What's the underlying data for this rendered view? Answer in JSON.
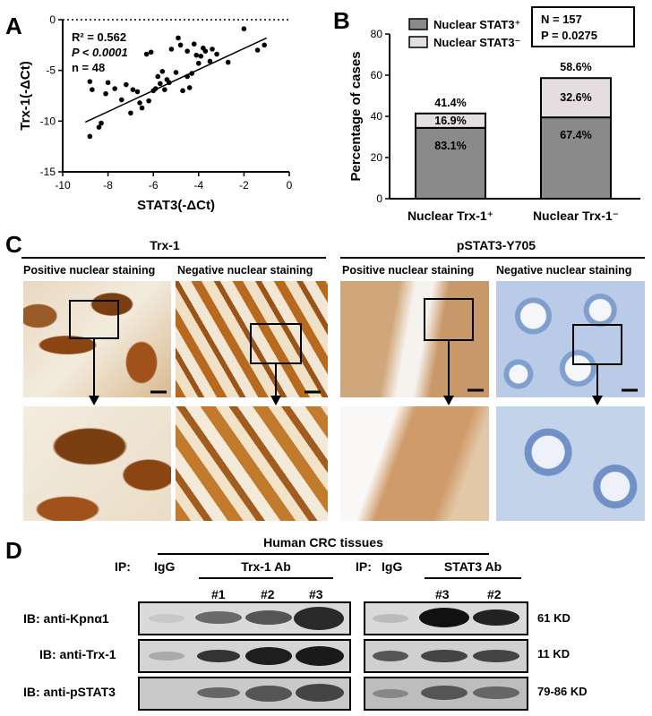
{
  "panels": {
    "a": "A",
    "b": "B",
    "c": "C",
    "d": "D"
  },
  "chart_data": [
    {
      "type": "scatter",
      "xlabel": "STAT3(-ΔCt)",
      "ylabel": "Trx-1(-ΔCt)",
      "xlim": [
        -10,
        0
      ],
      "ylim": [
        -15,
        0
      ],
      "xticks": [
        "-10",
        "-8",
        "-6",
        "-4",
        "-2",
        "0"
      ],
      "yticks": [
        "0",
        "-5",
        "-10",
        "-15"
      ],
      "annotation": {
        "r2_label": "R² = 0.562",
        "p_label": "P < 0.0001",
        "n_label": "n = 48"
      },
      "fit_line": {
        "x": [
          -9,
          -1
        ],
        "y": [
          -10.1,
          -1.8
        ]
      },
      "points": [
        [
          -8.8,
          -6.1
        ],
        [
          -8.7,
          -6.9
        ],
        [
          -8.8,
          -11.5
        ],
        [
          -8.4,
          -10.6
        ],
        [
          -8.3,
          -10.2
        ],
        [
          -8.1,
          -7.3
        ],
        [
          -8.0,
          -6.2
        ],
        [
          -7.7,
          -6.8
        ],
        [
          -7.4,
          -7.9
        ],
        [
          -7.2,
          -6.4
        ],
        [
          -7.0,
          -9.2
        ],
        [
          -6.9,
          -6.9
        ],
        [
          -6.7,
          -7.1
        ],
        [
          -6.6,
          -8.2
        ],
        [
          -6.5,
          -8.7
        ],
        [
          -6.3,
          -3.4
        ],
        [
          -6.2,
          -8.0
        ],
        [
          -6.1,
          -3.2
        ],
        [
          -6.0,
          -7.0
        ],
        [
          -5.9,
          -6.8
        ],
        [
          -5.8,
          -5.6
        ],
        [
          -5.7,
          -6.3
        ],
        [
          -5.6,
          -5.1
        ],
        [
          -5.5,
          -6.9
        ],
        [
          -5.4,
          -5.9
        ],
        [
          -5.3,
          -6.2
        ],
        [
          -5.2,
          -2.9
        ],
        [
          -5.0,
          -5.2
        ],
        [
          -4.9,
          -1.8
        ],
        [
          -4.8,
          -2.5
        ],
        [
          -4.7,
          -7.0
        ],
        [
          -4.5,
          -3.1
        ],
        [
          -4.5,
          -5.6
        ],
        [
          -4.4,
          -6.7
        ],
        [
          -4.3,
          -5.3
        ],
        [
          -4.2,
          -2.4
        ],
        [
          -4.1,
          -3.5
        ],
        [
          -4.0,
          -4.3
        ],
        [
          -3.9,
          -3.6
        ],
        [
          -3.8,
          -2.8
        ],
        [
          -3.7,
          -3.1
        ],
        [
          -3.5,
          -4.1
        ],
        [
          -3.4,
          -2.9
        ],
        [
          -3.2,
          -3.4
        ],
        [
          -2.7,
          -4.2
        ],
        [
          -2.0,
          -0.9
        ],
        [
          -1.4,
          -3.0
        ],
        [
          -1.1,
          -2.5
        ]
      ]
    },
    {
      "type": "bar",
      "ylabel": "Percentage of cases",
      "ylim": [
        0,
        80
      ],
      "yticks": [
        "0",
        "20",
        "40",
        "60",
        "80"
      ],
      "categories": [
        "Nuclear Trx-1⁺",
        "Nuclear Trx-1⁻"
      ],
      "totals": [
        41.4,
        58.6
      ],
      "total_labels": [
        "41.4%",
        "58.6%"
      ],
      "series": [
        {
          "name": "Nuclear STAT3⁺",
          "color": "#8a8a8a",
          "values": [
            34.4,
            39.5
          ],
          "labels": [
            "83.1%",
            "67.4%"
          ]
        },
        {
          "name": "Nuclear STAT3⁻",
          "color": "#e4dee0",
          "values": [
            7.0,
            19.1
          ],
          "labels": [
            "16.9%",
            "32.6%"
          ]
        }
      ],
      "stats": {
        "n_label": "N = 157",
        "p_label": "P = 0.0275"
      }
    }
  ],
  "histology": {
    "groups": [
      "Trx-1",
      "pSTAT3-Y705"
    ],
    "subheads": [
      "Positive nuclear staining",
      "Negative nuclear staining",
      "Positive nuclear staining",
      "Negative nuclear staining"
    ],
    "colors": {
      "brown_dark": "#7a3e10",
      "brown_mid": "#b8691e",
      "cream": "#efe3cf",
      "blue": "#7f9fcf",
      "blue_bg": "#dce6f3"
    }
  },
  "western": {
    "title": "Human CRC tissues",
    "ip_label": "IP:",
    "lanes_left": {
      "igg": "IgG",
      "ab": "Trx-1 Ab",
      "numbers": [
        "#1",
        "#2",
        "#3"
      ]
    },
    "lanes_right": {
      "igg": "IgG",
      "ab": "STAT3 Ab",
      "numbers": [
        "#3",
        "#2"
      ]
    },
    "rows": [
      {
        "label": "IB: anti-Kpnα1",
        "kd": "61 KD"
      },
      {
        "label": "IB: anti-Trx-1",
        "kd": "11 KD"
      },
      {
        "label": "IB: anti-pSTAT3",
        "kd": "79-86 KD"
      }
    ]
  }
}
